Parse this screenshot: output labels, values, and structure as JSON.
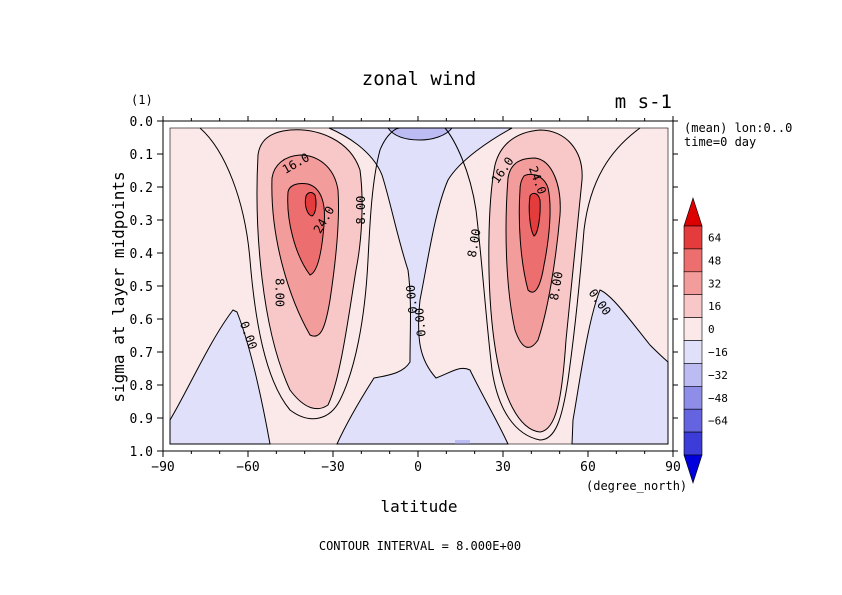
{
  "chart_data": {
    "type": "contour",
    "title": "zonal wind",
    "units": "m s-1",
    "ylabel_scale": "(1)",
    "xlabel": "latitude",
    "xunits": "(degree_north)",
    "ylabel": "sigma at layer midpoints",
    "info_lines": [
      "(mean) lon:0..0",
      "time=0 day"
    ],
    "footer": "CONTOUR INTERVAL = 8.000E+00",
    "xlim": [
      -90,
      90
    ],
    "ylim": [
      1.0,
      0.0
    ],
    "x_ticks": [
      -90,
      -60,
      -30,
      0,
      30,
      60,
      90
    ],
    "x_tick_labels": [
      "−90",
      "−60",
      "−30",
      "0",
      "30",
      "60",
      "90"
    ],
    "y_ticks": [
      0.0,
      0.1,
      0.2,
      0.3,
      0.4,
      0.5,
      0.6,
      0.7,
      0.8,
      0.9,
      1.0
    ],
    "y_tick_labels": [
      "0.0",
      "0.1",
      "0.2",
      "0.3",
      "0.4",
      "0.5",
      "0.6",
      "0.7",
      "0.8",
      "0.9",
      "1.0"
    ],
    "contour_interval": 8,
    "contour_labels": [
      {
        "text": "16.0",
        "lat": -43,
        "sigma": 0.13,
        "rot": -30
      },
      {
        "text": "24.0",
        "lat": -33,
        "sigma": 0.3,
        "rot": -60
      },
      {
        "text": "8.00",
        "lat": -20,
        "sigma": 0.27,
        "rot": -90
      },
      {
        "text": "8.00",
        "lat": -49,
        "sigma": 0.52,
        "rot": 90
      },
      {
        "text": "0.00",
        "lat": -60,
        "sigma": 0.65,
        "rot": 70
      },
      {
        "text": "0.00",
        "lat": -2,
        "sigma": 0.54,
        "rot": -95
      },
      {
        "text": "0.00",
        "lat": 1,
        "sigma": 0.61,
        "rot": -95
      },
      {
        "text": "16.0",
        "lat": 30,
        "sigma": 0.15,
        "rot": -55
      },
      {
        "text": "24.0",
        "lat": 42,
        "sigma": 0.18,
        "rot": 70
      },
      {
        "text": "8.00",
        "lat": 20,
        "sigma": 0.37,
        "rot": -80
      },
      {
        "text": "8.00",
        "lat": 49,
        "sigma": 0.5,
        "rot": -80
      },
      {
        "text": "0.00",
        "lat": 64,
        "sigma": 0.55,
        "rot": 55
      }
    ],
    "colorbar": {
      "labels": [
        "64",
        "48",
        "32",
        "16",
        "0",
        "−16",
        "−32",
        "−48",
        "−64"
      ],
      "colors": [
        "#dd0000",
        "#e43c3c",
        "#ec6e6e",
        "#f39c9c",
        "#f8c8c8",
        "#fbe8e8",
        "#e0e0fa",
        "#bcbcf3",
        "#8e8ee8",
        "#6464e0",
        "#3c3cd8",
        "#0000dd"
      ]
    }
  }
}
